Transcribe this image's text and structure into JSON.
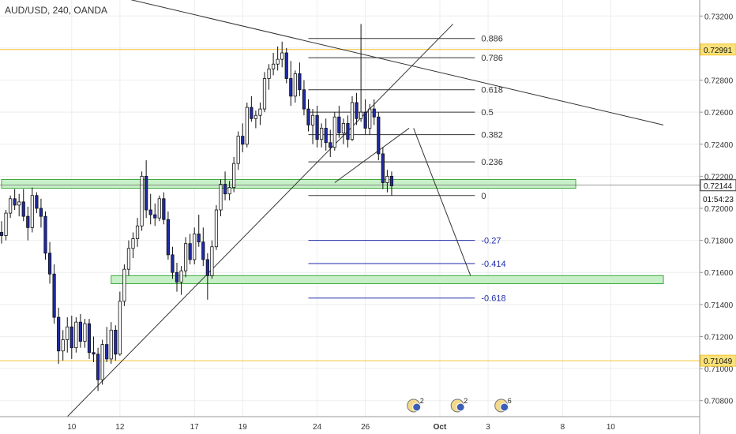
{
  "header": {
    "symbol": "AUD/USD, 240, OANDA"
  },
  "colors": {
    "bull": "#ffffff",
    "bear": "#1e2aa8",
    "wick": "#111111",
    "fib": "#333333",
    "fib_ext": "#1e2aa8",
    "zone_fill": "#c8f0c8",
    "zone_stroke": "#3aa83a",
    "hline": "#f4c430",
    "grid": "#eeeeee",
    "axis_text": "#333333",
    "tag_fill": "#f9e27a"
  },
  "chart_data": {
    "type": "candlestick",
    "title": "AUD/USD, 240, OANDA",
    "ylim": [
      0.707,
      0.733
    ],
    "y_ticks": [
      "0.73200",
      "0.73000",
      "0.72800",
      "0.72600",
      "0.72400",
      "0.72200",
      "0.72000",
      "0.71800",
      "0.71600",
      "0.71400",
      "0.71200",
      "0.71000",
      "0.70800"
    ],
    "x_ticks": [
      {
        "label": "10",
        "i": 16
      },
      {
        "label": "12",
        "i": 27
      },
      {
        "label": "17",
        "i": 44
      },
      {
        "label": "19",
        "i": 55
      },
      {
        "label": "24",
        "i": 72
      },
      {
        "label": "26",
        "i": 83
      },
      {
        "label": "Oct",
        "i": 100
      },
      {
        "label": "3",
        "i": 111
      },
      {
        "label": "8",
        "i": 128
      },
      {
        "label": "10",
        "i": 139
      }
    ],
    "price_tags": [
      {
        "label": "0.72991",
        "value": 0.72991,
        "style": "yellow"
      },
      {
        "label": "0.72144",
        "value": 0.72144,
        "style": "line"
      },
      {
        "label": "01:54:23",
        "value": 0.7206,
        "style": "timer"
      },
      {
        "label": "0.71049",
        "value": 0.71049,
        "style": "yellow"
      }
    ],
    "horizontal_lines": [
      0.72991,
      0.71049
    ],
    "zones": [
      {
        "y1": 0.7218,
        "y2": 0.72125,
        "i1": 0,
        "i2": 131
      },
      {
        "y1": 0.7158,
        "y2": 0.7153,
        "i1": 25,
        "i2": 151
      }
    ],
    "fib_levels": [
      {
        "label": "0.886",
        "value": 0.7306,
        "ext": false
      },
      {
        "label": "0.786",
        "value": 0.7294,
        "ext": false
      },
      {
        "label": "0.618",
        "value": 0.7274,
        "ext": false
      },
      {
        "label": "0.5",
        "value": 0.726,
        "ext": false
      },
      {
        "label": "0.382",
        "value": 0.7246,
        "ext": false
      },
      {
        "label": "0.236",
        "value": 0.7229,
        "ext": false
      },
      {
        "label": "0",
        "value": 0.7208,
        "ext": false
      },
      {
        "label": "-0.27",
        "value": 0.718,
        "ext": true
      },
      {
        "label": "-0.414",
        "value": 0.71655,
        "ext": true
      },
      {
        "label": "-0.618",
        "value": 0.7144,
        "ext": true
      }
    ],
    "fib_i1": 70,
    "fib_i2": 108,
    "trendlines": [
      {
        "i1": 22,
        "v1": 0.7335,
        "i2": 151,
        "v2": 0.7252
      },
      {
        "i1": 15,
        "v1": 0.707,
        "i2": 103,
        "v2": 0.7315
      },
      {
        "i1": 76,
        "v1": 0.7216,
        "i2": 93,
        "v2": 0.725
      },
      {
        "i1": 94,
        "v1": 0.725,
        "i2": 107,
        "v2": 0.7158
      }
    ],
    "events": [
      {
        "i": 94,
        "label": "2"
      },
      {
        "i": 104,
        "label": "2"
      },
      {
        "i": 114,
        "label": "6"
      }
    ],
    "candles": [
      [
        0.7185,
        0.7192,
        0.7178,
        0.7183
      ],
      [
        0.7183,
        0.7199,
        0.718,
        0.7197
      ],
      [
        0.7197,
        0.7208,
        0.7194,
        0.7206
      ],
      [
        0.7206,
        0.7212,
        0.7199,
        0.7202
      ],
      [
        0.7202,
        0.7209,
        0.7195,
        0.7204
      ],
      [
        0.7204,
        0.7212,
        0.7192,
        0.7195
      ],
      [
        0.7195,
        0.7201,
        0.718,
        0.7188
      ],
      [
        0.7188,
        0.7213,
        0.7185,
        0.7208
      ],
      [
        0.7208,
        0.721,
        0.7197,
        0.72
      ],
      [
        0.72,
        0.7206,
        0.7188,
        0.7195
      ],
      [
        0.7195,
        0.7198,
        0.7168,
        0.7172
      ],
      [
        0.7172,
        0.7179,
        0.7153,
        0.7159
      ],
      [
        0.7159,
        0.7165,
        0.7128,
        0.7132
      ],
      [
        0.7132,
        0.7138,
        0.7103,
        0.7111
      ],
      [
        0.7111,
        0.7124,
        0.7105,
        0.7118
      ],
      [
        0.7118,
        0.7132,
        0.711,
        0.7126
      ],
      [
        0.7126,
        0.7133,
        0.7106,
        0.7113
      ],
      [
        0.7113,
        0.7132,
        0.711,
        0.7129
      ],
      [
        0.7129,
        0.7134,
        0.7113,
        0.7117
      ],
      [
        0.7117,
        0.7131,
        0.7113,
        0.7128
      ],
      [
        0.7128,
        0.7131,
        0.7106,
        0.711
      ],
      [
        0.711,
        0.712,
        0.7104,
        0.7109
      ],
      [
        0.7109,
        0.7113,
        0.7086,
        0.7093
      ],
      [
        0.7093,
        0.7118,
        0.709,
        0.7115
      ],
      [
        0.7115,
        0.7126,
        0.7104,
        0.7106
      ],
      [
        0.7106,
        0.7129,
        0.7103,
        0.7124
      ],
      [
        0.7124,
        0.7127,
        0.7105,
        0.7109
      ],
      [
        0.7109,
        0.7148,
        0.7108,
        0.7142
      ],
      [
        0.7142,
        0.7165,
        0.7139,
        0.7162
      ],
      [
        0.7162,
        0.718,
        0.7158,
        0.7175
      ],
      [
        0.7175,
        0.7185,
        0.7169,
        0.7181
      ],
      [
        0.7181,
        0.7194,
        0.7176,
        0.7189
      ],
      [
        0.7189,
        0.7223,
        0.7186,
        0.722
      ],
      [
        0.722,
        0.723,
        0.7194,
        0.7199
      ],
      [
        0.7199,
        0.7209,
        0.719,
        0.7196
      ],
      [
        0.7196,
        0.7203,
        0.7189,
        0.7194
      ],
      [
        0.7194,
        0.7208,
        0.7192,
        0.7206
      ],
      [
        0.7206,
        0.721,
        0.719,
        0.7193
      ],
      [
        0.7193,
        0.7198,
        0.7168,
        0.7171
      ],
      [
        0.7171,
        0.7176,
        0.7156,
        0.716
      ],
      [
        0.716,
        0.7166,
        0.7148,
        0.7154
      ],
      [
        0.7154,
        0.7164,
        0.7146,
        0.7161
      ],
      [
        0.7161,
        0.7182,
        0.7157,
        0.7178
      ],
      [
        0.7178,
        0.7184,
        0.7165,
        0.7168
      ],
      [
        0.7168,
        0.7188,
        0.7165,
        0.7184
      ],
      [
        0.7184,
        0.7196,
        0.7176,
        0.7179
      ],
      [
        0.7179,
        0.7188,
        0.7164,
        0.7168
      ],
      [
        0.7168,
        0.7172,
        0.7143,
        0.7158
      ],
      [
        0.7158,
        0.718,
        0.7156,
        0.7176
      ],
      [
        0.7176,
        0.7202,
        0.7174,
        0.7199
      ],
      [
        0.7199,
        0.7218,
        0.7195,
        0.7215
      ],
      [
        0.7215,
        0.7223,
        0.7205,
        0.7209
      ],
      [
        0.7209,
        0.7217,
        0.7205,
        0.7213
      ],
      [
        0.7213,
        0.7232,
        0.721,
        0.7228
      ],
      [
        0.7228,
        0.7248,
        0.7224,
        0.7245
      ],
      [
        0.7245,
        0.7253,
        0.7235,
        0.724
      ],
      [
        0.724,
        0.7266,
        0.7238,
        0.7263
      ],
      [
        0.7263,
        0.727,
        0.7254,
        0.7256
      ],
      [
        0.7256,
        0.7261,
        0.725,
        0.7258
      ],
      [
        0.7258,
        0.7266,
        0.7252,
        0.7262
      ],
      [
        0.7262,
        0.7285,
        0.726,
        0.7281
      ],
      [
        0.7281,
        0.729,
        0.7274,
        0.7287
      ],
      [
        0.7287,
        0.7297,
        0.7283,
        0.729
      ],
      [
        0.729,
        0.7301,
        0.7286,
        0.7293
      ],
      [
        0.7293,
        0.7304,
        0.7288,
        0.7297
      ],
      [
        0.7297,
        0.73,
        0.7278,
        0.7281
      ],
      [
        0.7281,
        0.7292,
        0.7264,
        0.727
      ],
      [
        0.727,
        0.7286,
        0.7266,
        0.7284
      ],
      [
        0.7284,
        0.7291,
        0.727,
        0.7274
      ],
      [
        0.7274,
        0.728,
        0.7258,
        0.7262
      ],
      [
        0.7262,
        0.7268,
        0.7248,
        0.7252
      ],
      [
        0.7252,
        0.7262,
        0.724,
        0.7258
      ],
      [
        0.7258,
        0.7264,
        0.7238,
        0.7243
      ],
      [
        0.7243,
        0.7253,
        0.7238,
        0.725
      ],
      [
        0.725,
        0.7256,
        0.7236,
        0.7241
      ],
      [
        0.7241,
        0.7249,
        0.7232,
        0.7238
      ],
      [
        0.7238,
        0.726,
        0.7236,
        0.7257
      ],
      [
        0.7257,
        0.7264,
        0.7244,
        0.7247
      ],
      [
        0.7247,
        0.7256,
        0.724,
        0.7253
      ],
      [
        0.7253,
        0.7258,
        0.7238,
        0.7243
      ],
      [
        0.7243,
        0.727,
        0.7242,
        0.7266
      ],
      [
        0.7266,
        0.7272,
        0.7252,
        0.7256
      ],
      [
        0.7256,
        0.7315,
        0.7254,
        0.726
      ],
      [
        0.726,
        0.7268,
        0.7246,
        0.725
      ],
      [
        0.725,
        0.7265,
        0.7246,
        0.7262
      ],
      [
        0.7262,
        0.7268,
        0.7252,
        0.7257
      ],
      [
        0.7257,
        0.726,
        0.723,
        0.7234
      ],
      [
        0.7234,
        0.7238,
        0.7212,
        0.7216
      ],
      [
        0.7216,
        0.7224,
        0.721,
        0.722
      ],
      [
        0.722,
        0.7223,
        0.7208,
        0.7214
      ]
    ]
  }
}
